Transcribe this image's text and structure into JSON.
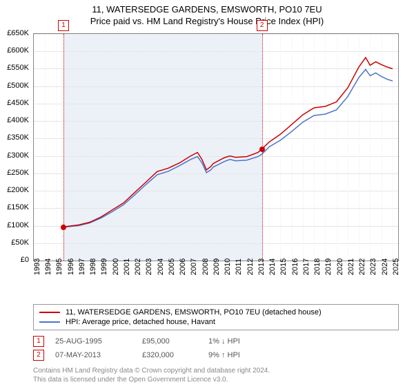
{
  "title_line1": "11, WATERSEDGE GARDENS, EMSWORTH, PO10 7EU",
  "title_line2": "Price paid vs. HM Land Registry's House Price Index (HPI)",
  "chart": {
    "type": "line",
    "background_color": "#ffffff",
    "grid_color": "#e5e5e5",
    "border_color": "#888888",
    "xlim": [
      1993,
      2025.5
    ],
    "ylim": [
      0,
      650000
    ],
    "ytick_step": 50000,
    "ytick_labels": [
      "£0",
      "£50K",
      "£100K",
      "£150K",
      "£200K",
      "£250K",
      "£300K",
      "£350K",
      "£400K",
      "£450K",
      "£500K",
      "£550K",
      "£600K",
      "£650K"
    ],
    "xtick_step": 1,
    "xtick_labels": [
      "1993",
      "1994",
      "1995",
      "1996",
      "1997",
      "1998",
      "1999",
      "2000",
      "2001",
      "2002",
      "2003",
      "2004",
      "2005",
      "2006",
      "2007",
      "2008",
      "2009",
      "2010",
      "2011",
      "2012",
      "2013",
      "2014",
      "2015",
      "2016",
      "2017",
      "2018",
      "2019",
      "2020",
      "2021",
      "2022",
      "2023",
      "2024",
      "2025"
    ],
    "minor_gridline_color": "#f0f0f0",
    "shaded_region": {
      "start": 1995.65,
      "end": 2013.35,
      "color": "rgba(200,215,235,0.35)"
    },
    "series": [
      {
        "name": "property",
        "label": "11, WATERSEDGE GARDENS, EMSWORTH, PO10 7EU (detached house)",
        "color": "#cc0000",
        "line_width": 1.5,
        "data": [
          [
            1995.65,
            95000
          ],
          [
            1996,
            98000
          ],
          [
            1997,
            102000
          ],
          [
            1998,
            110000
          ],
          [
            1999,
            125000
          ],
          [
            2000,
            145000
          ],
          [
            2001,
            165000
          ],
          [
            2002,
            195000
          ],
          [
            2003,
            225000
          ],
          [
            2004,
            255000
          ],
          [
            2005,
            265000
          ],
          [
            2006,
            280000
          ],
          [
            2007,
            300000
          ],
          [
            2007.6,
            310000
          ],
          [
            2008,
            290000
          ],
          [
            2008.4,
            260000
          ],
          [
            2008.8,
            270000
          ],
          [
            2009,
            278000
          ],
          [
            2010,
            295000
          ],
          [
            2010.5,
            300000
          ],
          [
            2011,
            296000
          ],
          [
            2012,
            298000
          ],
          [
            2013,
            310000
          ],
          [
            2013.35,
            320000
          ],
          [
            2014,
            340000
          ],
          [
            2015,
            362000
          ],
          [
            2016,
            390000
          ],
          [
            2017,
            418000
          ],
          [
            2018,
            438000
          ],
          [
            2019,
            442000
          ],
          [
            2020,
            455000
          ],
          [
            2021,
            495000
          ],
          [
            2022,
            555000
          ],
          [
            2022.6,
            582000
          ],
          [
            2023,
            560000
          ],
          [
            2023.5,
            570000
          ],
          [
            2024,
            562000
          ],
          [
            2024.5,
            555000
          ],
          [
            2025,
            550000
          ]
        ]
      },
      {
        "name": "hpi",
        "label": "HPI: Average price, detached house, Havant",
        "color": "#4a74c9",
        "line_width": 1.5,
        "data": [
          [
            1995.65,
            95000
          ],
          [
            1996,
            97000
          ],
          [
            1997,
            100000
          ],
          [
            1998,
            108000
          ],
          [
            1999,
            122000
          ],
          [
            2000,
            140000
          ],
          [
            2001,
            160000
          ],
          [
            2002,
            188000
          ],
          [
            2003,
            218000
          ],
          [
            2004,
            246000
          ],
          [
            2005,
            256000
          ],
          [
            2006,
            272000
          ],
          [
            2007,
            290000
          ],
          [
            2007.6,
            298000
          ],
          [
            2008,
            280000
          ],
          [
            2008.4,
            252000
          ],
          [
            2008.8,
            260000
          ],
          [
            2009,
            268000
          ],
          [
            2010,
            284000
          ],
          [
            2010.5,
            290000
          ],
          [
            2011,
            286000
          ],
          [
            2012,
            288000
          ],
          [
            2013,
            298000
          ],
          [
            2013.35,
            305000
          ],
          [
            2014,
            326000
          ],
          [
            2015,
            345000
          ],
          [
            2016,
            370000
          ],
          [
            2017,
            397000
          ],
          [
            2018,
            416000
          ],
          [
            2019,
            420000
          ],
          [
            2020,
            432000
          ],
          [
            2021,
            470000
          ],
          [
            2022,
            525000
          ],
          [
            2022.6,
            548000
          ],
          [
            2023,
            530000
          ],
          [
            2023.5,
            538000
          ],
          [
            2024,
            528000
          ],
          [
            2024.5,
            520000
          ],
          [
            2025,
            515000
          ]
        ]
      }
    ],
    "markers": [
      {
        "n": "1",
        "x": 1995.65,
        "y": 95000
      },
      {
        "n": "2",
        "x": 2013.35,
        "y": 320000
      }
    ]
  },
  "legend": {
    "border_color": "#999999",
    "items": [
      {
        "label": "11, WATERSEDGE GARDENS, EMSWORTH, PO10 7EU (detached house)",
        "color": "#cc0000"
      },
      {
        "label": "HPI: Average price, detached house, Havant",
        "color": "#4a74c9"
      }
    ]
  },
  "sales": [
    {
      "n": "1",
      "date": "25-AUG-1995",
      "price": "£95,000",
      "hpi": "1% ↓ HPI"
    },
    {
      "n": "2",
      "date": "07-MAY-2013",
      "price": "£320,000",
      "hpi": "9% ↑ HPI"
    }
  ],
  "copyright_line1": "Contains HM Land Registry data © Crown copyright and database right 2024.",
  "copyright_line2": "This data is licensed under the Open Government Licence v3.0."
}
